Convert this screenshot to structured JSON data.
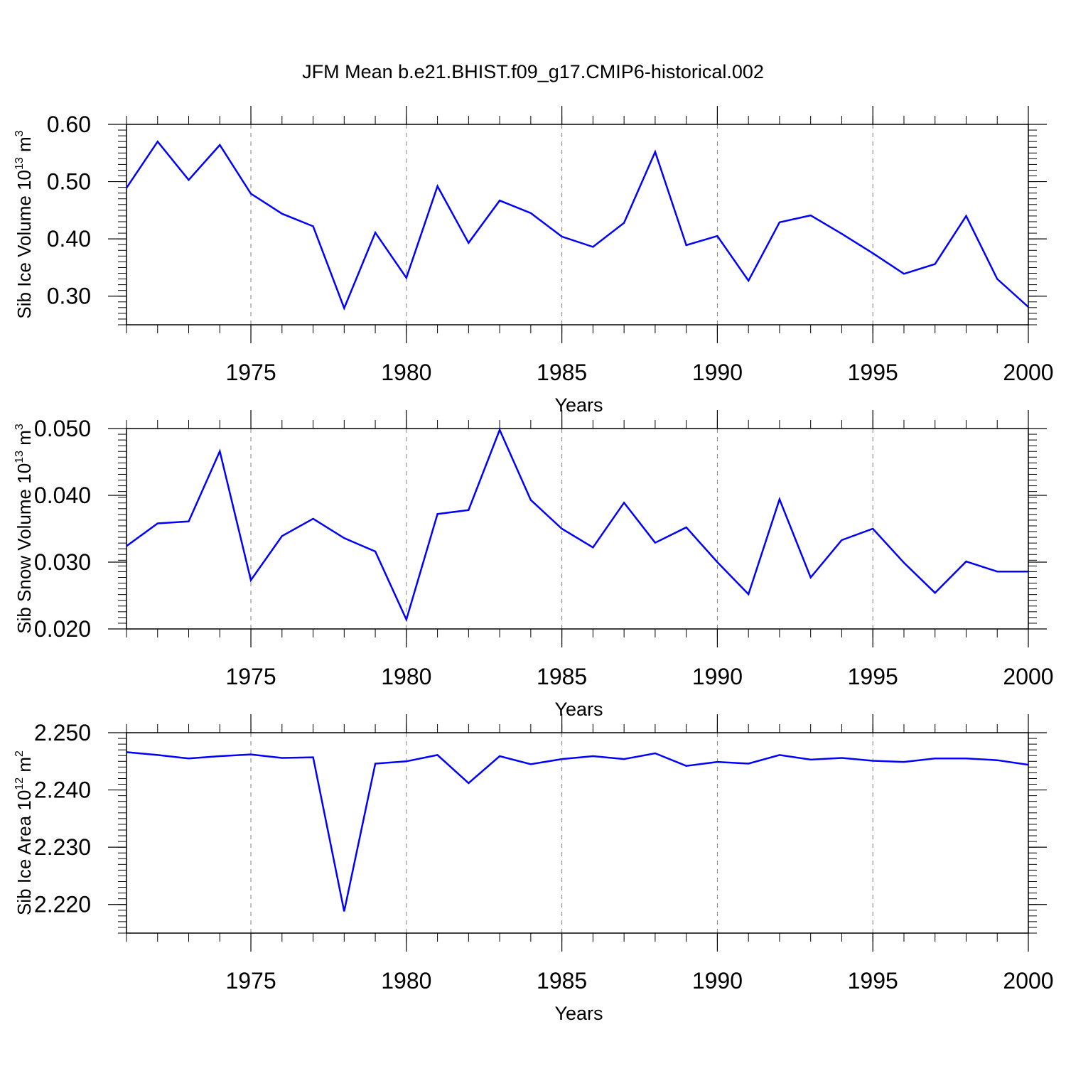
{
  "title": "JFM Mean b.e21.BHIST.f09_g17.CMIP6-historical.002",
  "colors": {
    "line": "#0000ff",
    "axis": "#000000",
    "grid": "#808080"
  },
  "chart_data": [
    {
      "type": "line",
      "title": "",
      "xlabel": "Years",
      "ylabel": "Sib Ice Volume 10",
      "ylabel_sup": "13",
      "ylabel_unit": " m",
      "ylabel_unit_sup": "3",
      "xlim": [
        1971,
        2000
      ],
      "ylim": [
        0.25,
        0.6
      ],
      "xticks": [
        "1975",
        "1980",
        "1985",
        "1990",
        "1995",
        "2000"
      ],
      "yticks": [
        "0.30",
        "0.40",
        "0.50",
        "0.60"
      ],
      "grid": "vertical dashed at major x ticks",
      "x": [
        1971,
        1972,
        1973,
        1974,
        1975,
        1976,
        1977,
        1978,
        1979,
        1980,
        1981,
        1982,
        1983,
        1984,
        1985,
        1986,
        1987,
        1988,
        1989,
        1990,
        1991,
        1992,
        1993,
        1994,
        1995,
        1996,
        1997,
        1998,
        1999,
        2000
      ],
      "series": [
        {
          "values": [
            0.489,
            0.57,
            0.503,
            0.564,
            0.479,
            0.444,
            0.422,
            0.279,
            0.411,
            0.332,
            0.492,
            0.393,
            0.467,
            0.445,
            0.404,
            0.386,
            0.428,
            0.552,
            0.389,
            0.405,
            0.327,
            0.429,
            0.441,
            0.409,
            0.375,
            0.339,
            0.356,
            0.44,
            0.33,
            0.281
          ]
        }
      ]
    },
    {
      "type": "line",
      "title": "",
      "xlabel": "Years",
      "ylabel": "Sib Snow Volume 10",
      "ylabel_sup": "13",
      "ylabel_unit": " m",
      "ylabel_unit_sup": "3",
      "xlim": [
        1971,
        2000
      ],
      "ylim": [
        0.02,
        0.05
      ],
      "xticks": [
        "1975",
        "1980",
        "1985",
        "1990",
        "1995",
        "2000"
      ],
      "yticks": [
        "0.020",
        "0.030",
        "0.040",
        "0.050"
      ],
      "grid": "vertical dashed at major x ticks",
      "x": [
        1971,
        1972,
        1973,
        1974,
        1975,
        1976,
        1977,
        1978,
        1979,
        1980,
        1981,
        1982,
        1983,
        1984,
        1985,
        1986,
        1987,
        1988,
        1989,
        1990,
        1991,
        1992,
        1993,
        1994,
        1995,
        1996,
        1997,
        1998,
        1999,
        2000
      ],
      "series": [
        {
          "values": [
            0.0324,
            0.0358,
            0.0361,
            0.0466,
            0.0273,
            0.0339,
            0.0365,
            0.0336,
            0.0316,
            0.0214,
            0.0372,
            0.0378,
            0.0498,
            0.0393,
            0.035,
            0.0322,
            0.0389,
            0.0329,
            0.0352,
            0.03,
            0.0252,
            0.0394,
            0.0277,
            0.0333,
            0.035,
            0.0299,
            0.0254,
            0.0301,
            0.0286,
            0.0286
          ]
        }
      ]
    },
    {
      "type": "line",
      "title": "",
      "xlabel": "Years",
      "ylabel": "Sib Ice Area 10",
      "ylabel_sup": "12",
      "ylabel_unit": " m",
      "ylabel_unit_sup": "2",
      "xlim": [
        1971,
        2000
      ],
      "ylim": [
        2.215,
        2.25
      ],
      "xticks": [
        "1975",
        "1980",
        "1985",
        "1990",
        "1995",
        "2000"
      ],
      "yticks": [
        "2.220",
        "2.230",
        "2.240",
        "2.250"
      ],
      "grid": "vertical dashed at major x ticks",
      "x": [
        1971,
        1972,
        1973,
        1974,
        1975,
        1976,
        1977,
        1978,
        1979,
        1980,
        1981,
        1982,
        1983,
        1984,
        1985,
        1986,
        1987,
        1988,
        1989,
        1990,
        1991,
        1992,
        1993,
        1994,
        1995,
        1996,
        1997,
        1998,
        1999,
        2000
      ],
      "series": [
        {
          "values": [
            2.2466,
            2.2461,
            2.2455,
            2.2459,
            2.2462,
            2.2456,
            2.2457,
            2.2188,
            2.2446,
            2.245,
            2.2461,
            2.2412,
            2.2459,
            2.2445,
            2.2454,
            2.2459,
            2.2454,
            2.2464,
            2.2442,
            2.2449,
            2.2446,
            2.2461,
            2.2453,
            2.2456,
            2.2451,
            2.2449,
            2.2455,
            2.2455,
            2.2452,
            2.2444
          ]
        }
      ]
    }
  ]
}
